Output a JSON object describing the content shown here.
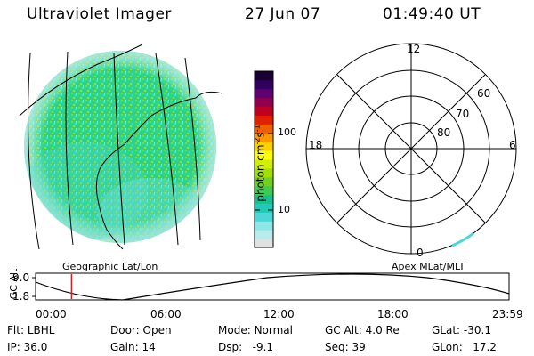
{
  "header": {
    "instrument": "Ultraviolet Imager",
    "date": "27 Jun 07",
    "time": "01:49:40 UT"
  },
  "colorbar": {
    "unit_label": "photon cm",
    "unit_exp1": "-2",
    "unit_mid": "s",
    "unit_exp2": "-1",
    "tick_high": "100",
    "tick_low": "10",
    "colors": [
      "#e0e0e0",
      "#b8ecec",
      "#8ee6e6",
      "#49d8d6",
      "#22c8b8",
      "#18c090",
      "#40c850",
      "#70d020",
      "#a0e000",
      "#d0f000",
      "#ffff00",
      "#ffd000",
      "#ff9800",
      "#f06000",
      "#e02000",
      "#c00020",
      "#900050",
      "#600070",
      "#300060",
      "#1a0030"
    ]
  },
  "polar_plot": {
    "mlt_labels": {
      "top": "12",
      "left": "18",
      "right": "6",
      "bottom": "0"
    },
    "lat_labels": [
      "60",
      "70",
      "80"
    ]
  },
  "orbit_panel": {
    "y_axis_label": "GC Alt",
    "y_ticks": [
      "9.0",
      "1.8"
    ],
    "left_title": "Geographic Lat/Lon",
    "right_title": "Apex MLat/MLT",
    "x_ticks": [
      "00:00",
      "06:00",
      "12:00",
      "18:00",
      "23:59"
    ],
    "current_time_fraction": 0.076
  },
  "info": {
    "flt_label": "Flt:",
    "flt_value": "LBHL",
    "ip_label": "IP:",
    "ip_value": "36.0",
    "door_label": "Door:",
    "door_value": "Open",
    "gain_label": "Gain:",
    "gain_value": "14",
    "mode_label": "Mode:",
    "mode_value": "Normal",
    "dsp_label": "Dsp:",
    "dsp_value": "-9.1",
    "gcalt_label": "GC Alt:",
    "gcalt_value": "4.0 Re",
    "seq_label": "Seq:",
    "seq_value": "39",
    "glat_label": "GLat:",
    "glat_value": "-30.1",
    "glon_label": "GLon:",
    "glon_value": "17.2"
  }
}
